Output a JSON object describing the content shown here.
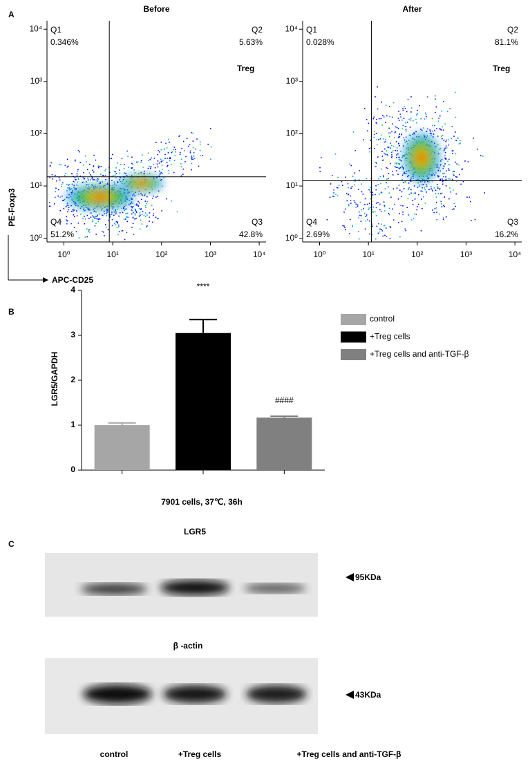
{
  "panels": {
    "a": "A",
    "b": "B",
    "c": "C"
  },
  "chart_data": [
    {
      "type": "flow",
      "title": "Before",
      "ylabel": "PE-Foxp3",
      "xlabel": "APC-CD25",
      "log": true,
      "xlim": [
        0.45,
        13800
      ],
      "ylim": [
        0.85,
        14500
      ],
      "xticks": [
        {
          "value": 1,
          "label": "10⁰"
        },
        {
          "value": 10,
          "label": "10¹"
        },
        {
          "value": 100,
          "label": "10²"
        },
        {
          "value": 1000,
          "label": "10³"
        },
        {
          "value": 10000,
          "label": "10⁴"
        }
      ],
      "yticks": [
        {
          "value": 1,
          "label": "10⁰"
        },
        {
          "value": 10,
          "label": "10¹"
        },
        {
          "value": 100,
          "label": "10²"
        },
        {
          "value": 1000,
          "label": "10³"
        },
        {
          "value": 10000,
          "label": "10⁴"
        }
      ],
      "gate": {
        "x": 8.5,
        "y": 15
      },
      "quadrants": [
        {
          "name": "Q1",
          "label": "0.346%"
        },
        {
          "name": "Q2",
          "label": "5.63%"
        },
        {
          "name": "Q3",
          "label": "42.8%"
        },
        {
          "name": "Q4",
          "label": "51.2%"
        }
      ],
      "gate_label": "Treg"
    },
    {
      "type": "flow",
      "title": "After",
      "log": true,
      "xlim": [
        0.45,
        13800
      ],
      "ylim": [
        0.85,
        14500
      ],
      "xticks": [
        {
          "value": 1,
          "label": "10⁰"
        },
        {
          "value": 10,
          "label": "10¹"
        },
        {
          "value": 100,
          "label": "10²"
        },
        {
          "value": 1000,
          "label": "10³"
        },
        {
          "value": 10000,
          "label": "10⁴"
        }
      ],
      "yticks": [
        {
          "value": 1,
          "label": "10⁰"
        },
        {
          "value": 10,
          "label": "10¹"
        },
        {
          "value": 100,
          "label": "10²"
        },
        {
          "value": 1000,
          "label": "10³"
        },
        {
          "value": 10000,
          "label": "10⁴"
        }
      ],
      "gate": {
        "x": 11.5,
        "y": 12.6
      },
      "quadrants": [
        {
          "name": "Q1",
          "label": "0.028%"
        },
        {
          "name": "Q2",
          "label": "81.1%"
        },
        {
          "name": "Q3",
          "label": "16.2%"
        },
        {
          "name": "Q4",
          "label": "2.69%"
        }
      ],
      "gate_label": "Treg"
    },
    {
      "type": "bar",
      "ylabel": "LGR5/GAPDH",
      "xlabel": "7901 cells, 37℃, 36h",
      "ylim": [
        0,
        4
      ],
      "yticks": [
        0,
        1,
        2,
        3,
        4
      ],
      "series": [
        {
          "name": "control",
          "color": "#a6a6a6",
          "values": [
            1.0
          ],
          "errors": [
            0.05
          ]
        },
        {
          "name": "+Treg cells",
          "color": "#000000",
          "values": [
            3.05
          ],
          "errors": [
            0.3
          ],
          "annotation": "****"
        },
        {
          "name": "+Treg cells and anti-TGF-β",
          "color": "#808080",
          "values": [
            1.17
          ],
          "errors": [
            0.03
          ],
          "annotation": "####"
        }
      ]
    }
  ],
  "blot": {
    "top_title": "LGR5",
    "top_marker": "95KDa",
    "bottom_title": "β -actin",
    "bottom_marker": "43KDa",
    "lanes": [
      "control",
      "+Treg cells",
      "+Treg cells and anti-TGF-β"
    ]
  }
}
